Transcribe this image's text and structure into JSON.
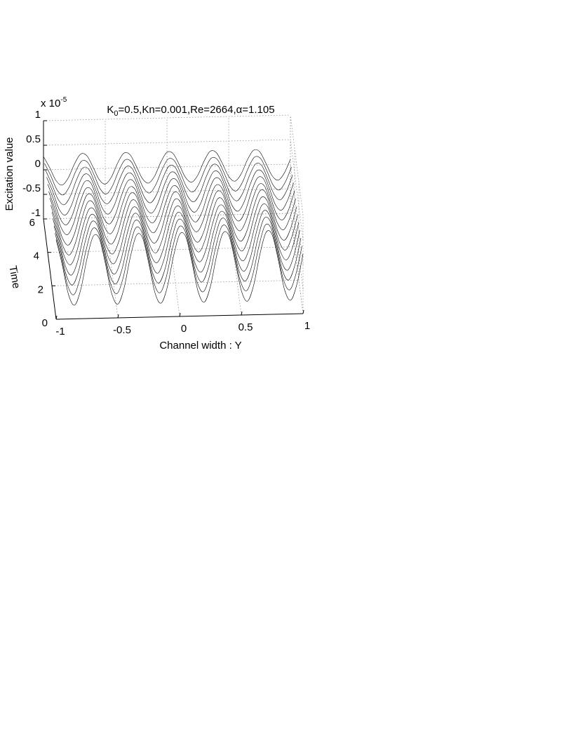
{
  "chart_data": {
    "type": "waterfall",
    "title_parts": [
      "K",
      "0",
      "=0.5,Kn=0.001,Re=2664,α=1.105"
    ],
    "xlabel": "Channel width : Y",
    "ylabel": "Time",
    "zlabel": "Excitation value",
    "z_exponent": [
      "x 10",
      "-5"
    ],
    "xlim": [
      -1,
      1
    ],
    "xticks": [
      -1,
      -0.5,
      0,
      0.5,
      1
    ],
    "ylim": [
      0,
      6
    ],
    "yticks": [
      0,
      2,
      4,
      6
    ],
    "zlim": [
      -1,
      1
    ],
    "zticks": [
      -1,
      -0.5,
      0,
      0.5,
      1
    ],
    "grid": true,
    "color": "#000000",
    "x": [
      -1,
      -0.95,
      -0.9,
      -0.85,
      -0.8,
      -0.75,
      -0.7,
      -0.65,
      -0.6,
      -0.55,
      -0.5,
      -0.45,
      -0.4,
      -0.35,
      -0.3,
      -0.25,
      -0.2,
      -0.15,
      -0.1,
      -0.05,
      0,
      0.05,
      0.1,
      0.15,
      0.2,
      0.25,
      0.3,
      0.35,
      0.4,
      0.45,
      0.5,
      0.55,
      0.6,
      0.65,
      0.7,
      0.75,
      0.8,
      0.85,
      0.9,
      0.95,
      1
    ],
    "series": [
      {
        "t": 0,
        "values": [
          0.62,
          0.1,
          -0.5,
          -0.72,
          -0.4,
          0.22,
          0.67,
          0.62,
          0.1,
          -0.5,
          -0.72,
          -0.4,
          0.22,
          0.67,
          0.62,
          0.1,
          -0.5,
          -0.72,
          -0.4,
          0.22,
          0.67,
          0.62,
          0.1,
          -0.5,
          -0.72,
          -0.4,
          0.22,
          0.67,
          0.62,
          0.1,
          -0.5,
          -0.72,
          -0.4,
          0.22,
          0.67,
          0.62,
          0.1,
          -0.5,
          -0.72,
          -0.4,
          0.22
        ]
      },
      {
        "t": 0.5,
        "values": [
          0.58,
          0.09,
          -0.47,
          -0.68,
          -0.37,
          0.21,
          0.64,
          0.58,
          0.09,
          -0.47,
          -0.68,
          -0.37,
          0.21,
          0.64,
          0.58,
          0.09,
          -0.47,
          -0.68,
          -0.37,
          0.21,
          0.64,
          0.58,
          0.09,
          -0.47,
          -0.68,
          -0.37,
          0.21,
          0.64,
          0.58,
          0.09,
          -0.47,
          -0.68,
          -0.37,
          0.21,
          0.64,
          0.58,
          0.09,
          -0.47,
          -0.68,
          -0.37,
          0.21
        ]
      },
      {
        "t": 1,
        "values": [
          0.56,
          0.09,
          -0.45,
          -0.65,
          -0.36,
          0.2,
          0.61,
          0.56,
          0.09,
          -0.45,
          -0.65,
          -0.36,
          0.2,
          0.61,
          0.56,
          0.09,
          -0.45,
          -0.65,
          -0.36,
          0.2,
          0.61,
          0.56,
          0.09,
          -0.45,
          -0.65,
          -0.36,
          0.2,
          0.61,
          0.56,
          0.09,
          -0.45,
          -0.65,
          -0.36,
          0.2,
          0.61,
          0.56,
          0.09,
          -0.45,
          -0.65,
          -0.36,
          0.2
        ]
      },
      {
        "t": 1.5,
        "values": [
          0.53,
          0.08,
          -0.43,
          -0.62,
          -0.34,
          0.19,
          0.58,
          0.53,
          0.08,
          -0.43,
          -0.62,
          -0.34,
          0.19,
          0.58,
          0.53,
          0.08,
          -0.43,
          -0.62,
          -0.34,
          0.19,
          0.58,
          0.53,
          0.08,
          -0.43,
          -0.62,
          -0.34,
          0.19,
          0.58,
          0.53,
          0.08,
          -0.43,
          -0.62,
          -0.34,
          0.19,
          0.58,
          0.53,
          0.08,
          -0.43,
          -0.62,
          -0.34,
          0.19
        ]
      },
      {
        "t": 2,
        "values": [
          0.5,
          0.08,
          -0.4,
          -0.58,
          -0.32,
          0.18,
          0.54,
          0.5,
          0.08,
          -0.4,
          -0.58,
          -0.32,
          0.18,
          0.54,
          0.5,
          0.08,
          -0.4,
          -0.58,
          -0.32,
          0.18,
          0.54,
          0.5,
          0.08,
          -0.4,
          -0.58,
          -0.32,
          0.18,
          0.54,
          0.5,
          0.08,
          -0.4,
          -0.58,
          -0.32,
          0.18,
          0.54,
          0.5,
          0.08,
          -0.4,
          -0.58,
          -0.32,
          0.18
        ]
      },
      {
        "t": 2.5,
        "values": [
          0.47,
          0.07,
          -0.38,
          -0.55,
          -0.3,
          0.17,
          0.52,
          0.47,
          0.07,
          -0.38,
          -0.55,
          -0.3,
          0.17,
          0.52,
          0.47,
          0.07,
          -0.38,
          -0.55,
          -0.3,
          0.17,
          0.52,
          0.47,
          0.07,
          -0.38,
          -0.55,
          -0.3,
          0.17,
          0.52,
          0.47,
          0.07,
          -0.38,
          -0.55,
          -0.3,
          0.17,
          0.52,
          0.47,
          0.07,
          -0.38,
          -0.55,
          -0.3,
          0.17
        ]
      },
      {
        "t": 3,
        "values": [
          0.45,
          0.07,
          -0.36,
          -0.52,
          -0.29,
          0.16,
          0.49,
          0.45,
          0.07,
          -0.36,
          -0.52,
          -0.29,
          0.16,
          0.49,
          0.45,
          0.07,
          -0.36,
          -0.52,
          -0.29,
          0.16,
          0.49,
          0.45,
          0.07,
          -0.36,
          -0.52,
          -0.29,
          0.16,
          0.49,
          0.45,
          0.07,
          -0.36,
          -0.52,
          -0.29,
          0.16,
          0.49,
          0.45,
          0.07,
          -0.36,
          -0.52,
          -0.29,
          0.16
        ]
      },
      {
        "t": 3.5,
        "values": [
          0.41,
          0.06,
          -0.33,
          -0.48,
          -0.26,
          0.15,
          0.45,
          0.41,
          0.06,
          -0.33,
          -0.48,
          -0.26,
          0.15,
          0.45,
          0.41,
          0.06,
          -0.33,
          -0.48,
          -0.26,
          0.15,
          0.45,
          0.41,
          0.06,
          -0.33,
          -0.48,
          -0.26,
          0.15,
          0.45,
          0.41,
          0.06,
          -0.33,
          -0.48,
          -0.26,
          0.15,
          0.45,
          0.41,
          0.06,
          -0.33,
          -0.48,
          -0.26,
          0.15
        ]
      },
      {
        "t": 4,
        "values": [
          0.39,
          0.06,
          -0.31,
          -0.45,
          -0.25,
          0.14,
          0.42,
          0.39,
          0.06,
          -0.31,
          -0.45,
          -0.25,
          0.14,
          0.42,
          0.39,
          0.06,
          -0.31,
          -0.45,
          -0.25,
          0.14,
          0.42,
          0.39,
          0.06,
          -0.31,
          -0.45,
          -0.25,
          0.14,
          0.42,
          0.39,
          0.06,
          -0.31,
          -0.45,
          -0.25,
          0.14,
          0.42,
          0.39,
          0.06,
          -0.31,
          -0.45,
          -0.25,
          0.14
        ]
      },
      {
        "t": 4.5,
        "values": [
          0.36,
          0.06,
          -0.29,
          -0.42,
          -0.23,
          0.13,
          0.39,
          0.36,
          0.06,
          -0.29,
          -0.42,
          -0.23,
          0.13,
          0.39,
          0.36,
          0.06,
          -0.29,
          -0.42,
          -0.23,
          0.13,
          0.39,
          0.36,
          0.06,
          -0.29,
          -0.42,
          -0.23,
          0.13,
          0.39,
          0.36,
          0.06,
          -0.29,
          -0.42,
          -0.23,
          0.13,
          0.39,
          0.36,
          0.06,
          -0.29,
          -0.42,
          -0.23,
          0.13
        ]
      },
      {
        "t": 5,
        "values": [
          0.33,
          0.05,
          -0.26,
          -0.38,
          -0.21,
          0.12,
          0.36,
          0.33,
          0.05,
          -0.26,
          -0.38,
          -0.21,
          0.12,
          0.36,
          0.33,
          0.05,
          -0.26,
          -0.38,
          -0.21,
          0.12,
          0.36,
          0.33,
          0.05,
          -0.26,
          -0.38,
          -0.21,
          0.12,
          0.36,
          0.33,
          0.05,
          -0.26,
          -0.38,
          -0.21,
          0.12,
          0.36,
          0.33,
          0.05,
          -0.26,
          -0.38,
          -0.21,
          0.12
        ]
      },
      {
        "t": 5.5,
        "values": [
          0.3,
          0.05,
          -0.24,
          -0.35,
          -0.19,
          0.11,
          0.33,
          0.3,
          0.05,
          -0.24,
          -0.35,
          -0.19,
          0.11,
          0.33,
          0.3,
          0.05,
          -0.24,
          -0.35,
          -0.19,
          0.11,
          0.33,
          0.3,
          0.05,
          -0.24,
          -0.35,
          -0.19,
          0.11,
          0.33,
          0.3,
          0.05,
          -0.24,
          -0.35,
          -0.19,
          0.11,
          0.33,
          0.3,
          0.05,
          -0.24,
          -0.35,
          -0.19,
          0.11
        ]
      },
      {
        "t": 6,
        "values": [
          0.27,
          0.04,
          -0.22,
          -0.32,
          -0.18,
          0.1,
          0.3,
          0.27,
          0.04,
          -0.22,
          -0.32,
          -0.18,
          0.1,
          0.3,
          0.27,
          0.04,
          -0.22,
          -0.32,
          -0.18,
          0.1,
          0.3,
          0.27,
          0.04,
          -0.22,
          -0.32,
          -0.18,
          0.1,
          0.3,
          0.27,
          0.04,
          -0.22,
          -0.32,
          -0.18,
          0.1,
          0.3,
          0.27,
          0.04,
          -0.22,
          -0.32,
          -0.18,
          0.1
        ]
      }
    ]
  }
}
